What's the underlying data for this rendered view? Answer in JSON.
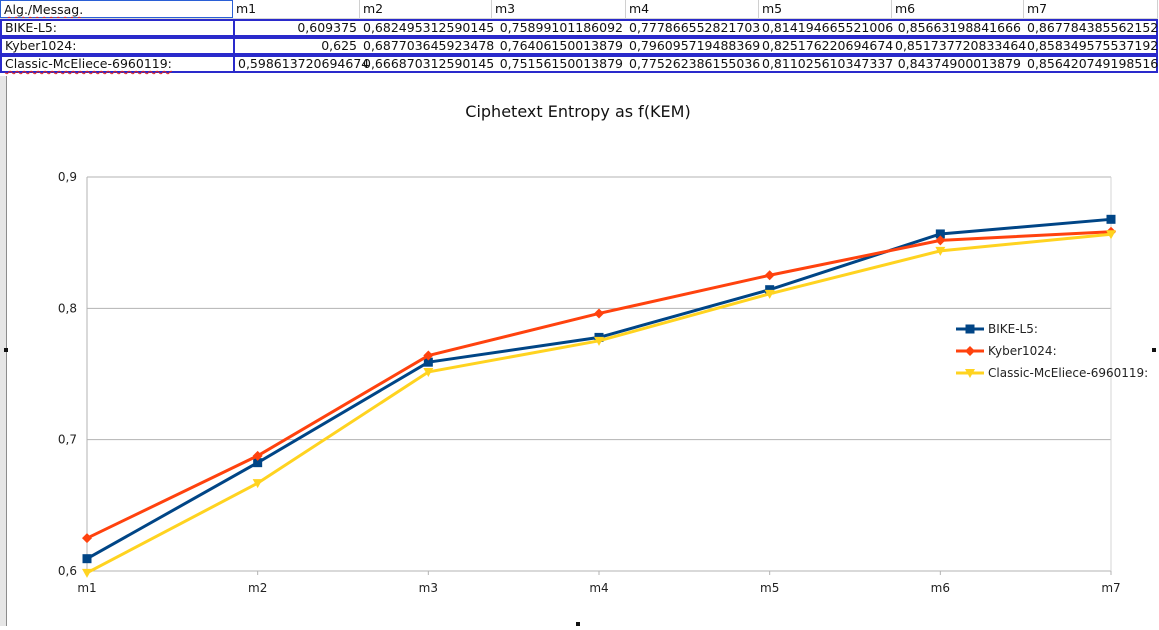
{
  "sheet": {
    "header": [
      "Alg./Messag.",
      "m1",
      "m2",
      "m3",
      "m4",
      "m5",
      "m6",
      "m7"
    ],
    "rows": [
      {
        "label": "BIKE-L5:",
        "values": [
          "0,609375",
          "0,682495312590145",
          "0,75899101186092",
          "0,777866552821703",
          "0,814194665521006",
          "0,85663198841666",
          "0,867784385562152"
        ]
      },
      {
        "label": "Kyber1024:",
        "values": [
          "0,625",
          "0,687703645923478",
          "0,76406150013879",
          "0,796095719488369",
          "0,825176220694674",
          "0,851737720833464",
          "0,858349575537192"
        ]
      },
      {
        "label": "Classic-McEliece-6960119:",
        "values": [
          "0,598613720694674",
          "0,666870312590145",
          "0,75156150013879",
          "0,775262386155036",
          "0,811025610347337",
          "0,84374900013879",
          "0,856420749198516"
        ]
      }
    ]
  },
  "chart_data": {
    "type": "line",
    "title": "Ciphetext Entropy as f(KEM)",
    "xlabel": "",
    "ylabel": "",
    "categories": [
      "m1",
      "m2",
      "m3",
      "m4",
      "m5",
      "m6",
      "m7"
    ],
    "ylim": [
      0.6,
      0.9
    ],
    "yticks": [
      0.6,
      0.7,
      0.8,
      0.9
    ],
    "ytick_labels": [
      "0,6",
      "0,7",
      "0,8",
      "0,9"
    ],
    "grid": "horizontal",
    "legend_position": "right",
    "series": [
      {
        "name": "BIKE-L5:",
        "color": "#004586",
        "marker": "square",
        "values": [
          0.609375,
          0.682495312590145,
          0.75899101186092,
          0.777866552821703,
          0.814194665521006,
          0.85663198841666,
          0.867784385562152
        ]
      },
      {
        "name": "Kyber1024:",
        "color": "#ff420e",
        "marker": "diamond",
        "values": [
          0.625,
          0.687703645923478,
          0.76406150013879,
          0.796095719488369,
          0.825176220694674,
          0.851737720833464,
          0.858349575537192
        ]
      },
      {
        "name": "Classic-McEliece-6960119:",
        "color": "#ffd320",
        "marker": "triangle-down",
        "values": [
          0.598613720694674,
          0.666870312590145,
          0.75156150013879,
          0.775262386155036,
          0.811025610347337,
          0.84374900013879,
          0.856420749198516
        ]
      }
    ]
  }
}
